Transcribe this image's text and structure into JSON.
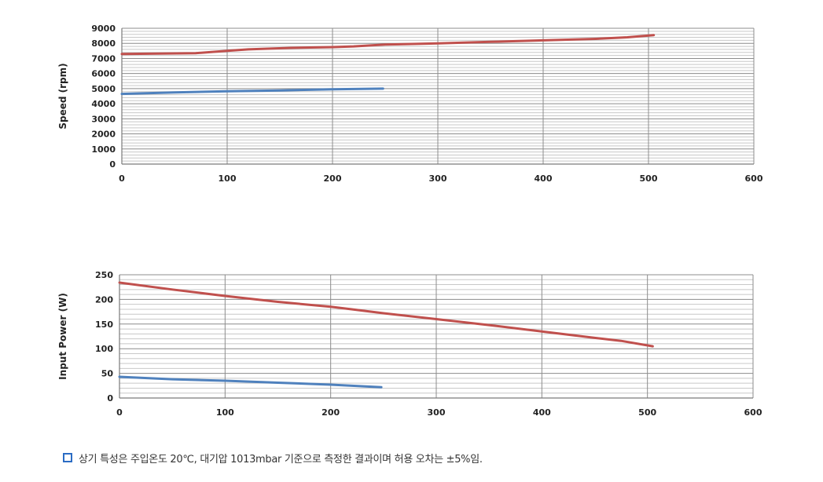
{
  "chart_data": [
    {
      "type": "line",
      "ylabel": "Speed (rpm)",
      "xlim": [
        0,
        600
      ],
      "ylim": [
        0,
        9000
      ],
      "xticks": [
        0,
        100,
        200,
        300,
        400,
        500,
        600
      ],
      "yticks": [
        0,
        1000,
        2000,
        3000,
        4000,
        5000,
        6000,
        7000,
        8000,
        9000
      ],
      "grid": true,
      "series": [
        {
          "color": "#c0504d",
          "x": [
            0,
            70,
            100,
            120,
            160,
            200,
            220,
            250,
            300,
            350,
            400,
            450,
            480,
            505
          ],
          "y": [
            7300,
            7350,
            7500,
            7600,
            7700,
            7750,
            7800,
            7920,
            8000,
            8100,
            8200,
            8300,
            8400,
            8550
          ]
        },
        {
          "color": "#4f81bd",
          "x": [
            0,
            50,
            100,
            150,
            200,
            248
          ],
          "y": [
            4650,
            4750,
            4820,
            4880,
            4950,
            5000
          ]
        }
      ]
    },
    {
      "type": "line",
      "ylabel": "Input  Power (W)",
      "xlim": [
        0,
        600
      ],
      "ylim": [
        0,
        250
      ],
      "xticks": [
        0,
        100,
        200,
        300,
        400,
        500,
        600
      ],
      "yticks": [
        0,
        50,
        100,
        150,
        200,
        250
      ],
      "grid": true,
      "series": [
        {
          "color": "#c0504d",
          "x": [
            0,
            50,
            100,
            150,
            200,
            220,
            250,
            300,
            350,
            400,
            450,
            475,
            505
          ],
          "y": [
            234,
            220,
            207,
            195,
            185,
            180,
            172,
            160,
            148,
            135,
            122,
            116,
            105
          ]
        },
        {
          "color": "#4f81bd",
          "x": [
            0,
            50,
            100,
            150,
            200,
            248
          ],
          "y": [
            43,
            38,
            35,
            31,
            27,
            22
          ]
        }
      ]
    }
  ],
  "note": {
    "text": "상기 특성은 주입온도 20℃, 대기압 1013mbar 기준으로 측정한 결과이며 허용 오차는 ±5%임."
  }
}
